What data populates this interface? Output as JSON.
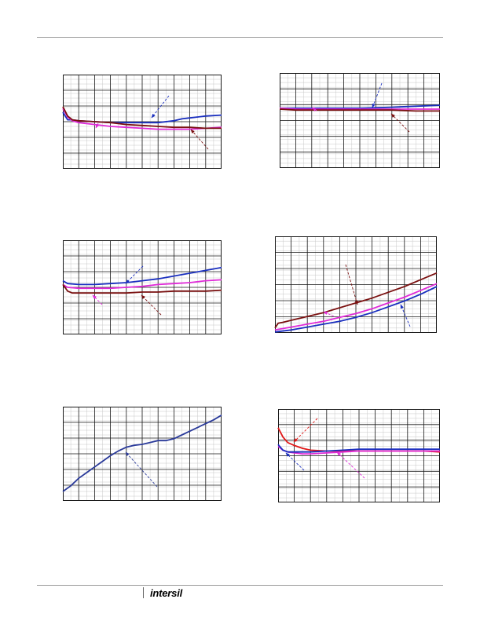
{
  "footer": {
    "logo_text": "intersil",
    "logo_name": "intersil-logo"
  },
  "colors": {
    "blue": "#1a2fbf",
    "magenta": "#e02ad8",
    "maroon": "#7a1010",
    "red": "#e01818",
    "navy": "#2a3a9a",
    "grid": "#1a1a1a",
    "minor_grid": "#c8c8c8"
  },
  "chart_data": [
    {
      "type": "line",
      "title": "",
      "xlabel": "",
      "ylabel": "",
      "xlim": [
        0,
        100
      ],
      "ylim": [
        0,
        100
      ],
      "grid": true,
      "series": [
        {
          "color": "blue",
          "x": [
            0,
            3,
            6,
            10,
            20,
            30,
            40,
            50,
            55,
            60,
            70,
            75,
            80,
            90,
            100
          ],
          "y": [
            60,
            52,
            52,
            51,
            50,
            49,
            49,
            49,
            49,
            49,
            51,
            53,
            54,
            56,
            57
          ]
        },
        {
          "color": "magenta",
          "x": [
            0,
            3,
            6,
            10,
            20,
            30,
            40,
            50,
            60,
            70,
            80,
            90,
            100
          ],
          "y": [
            64,
            55,
            51,
            49,
            47,
            45,
            44,
            43,
            42,
            42,
            42,
            43,
            44
          ]
        },
        {
          "color": "maroon",
          "x": [
            0,
            3,
            6,
            10,
            20,
            30,
            40,
            50,
            60,
            70,
            80,
            90,
            100
          ],
          "y": [
            66,
            56,
            52,
            51,
            50,
            49,
            47,
            46,
            45,
            44,
            44,
            43,
            43
          ]
        }
      ]
    },
    {
      "type": "line",
      "title": "",
      "xlabel": "",
      "ylabel": "",
      "xlim": [
        0,
        100
      ],
      "ylim": [
        0,
        100
      ],
      "grid": true,
      "series": [
        {
          "color": "blue",
          "x": [
            0,
            10,
            30,
            50,
            70,
            85,
            100
          ],
          "y": [
            63,
            63,
            63,
            63,
            64,
            65,
            66
          ]
        },
        {
          "color": "magenta",
          "x": [
            0,
            10,
            30,
            50,
            70,
            85,
            100
          ],
          "y": [
            63,
            62,
            62,
            62,
            62,
            62,
            62
          ]
        },
        {
          "color": "maroon",
          "x": [
            0,
            10,
            30,
            50,
            70,
            85,
            100
          ],
          "y": [
            62,
            61,
            61,
            61,
            61,
            60,
            60
          ]
        }
      ]
    },
    {
      "type": "line",
      "title": "",
      "xlabel": "",
      "ylabel": "",
      "xlim": [
        0,
        100
      ],
      "ylim": [
        0,
        100
      ],
      "grid": true,
      "series": [
        {
          "color": "blue",
          "x": [
            0,
            3,
            10,
            20,
            30,
            40,
            50,
            60,
            70,
            80,
            90,
            100
          ],
          "y": [
            57,
            54,
            53,
            53,
            54,
            55,
            57,
            59,
            62,
            65,
            68,
            71
          ]
        },
        {
          "color": "magenta",
          "x": [
            0,
            3,
            10,
            20,
            30,
            40,
            50,
            60,
            70,
            80,
            90,
            100
          ],
          "y": [
            53,
            50,
            49,
            49,
            49,
            50,
            51,
            53,
            54,
            55,
            57,
            58
          ]
        },
        {
          "color": "maroon",
          "x": [
            0,
            3,
            6,
            10,
            20,
            30,
            40,
            50,
            60,
            70,
            80,
            90,
            100
          ],
          "y": [
            53,
            46,
            44,
            44,
            44,
            44,
            44,
            45,
            45,
            46,
            46,
            46,
            47
          ]
        }
      ]
    },
    {
      "type": "line",
      "title": "",
      "xlabel": "",
      "ylabel": "",
      "xlim": [
        0,
        100
      ],
      "ylim": [
        0,
        100
      ],
      "grid": true,
      "series": [
        {
          "color": "maroon",
          "x": [
            0,
            2,
            5,
            10,
            20,
            30,
            40,
            50,
            60,
            70,
            80,
            90,
            100
          ],
          "y": [
            5,
            10,
            11,
            13,
            17,
            21,
            26,
            31,
            36,
            42,
            48,
            55,
            62
          ]
        },
        {
          "color": "magenta",
          "x": [
            0,
            10,
            20,
            30,
            40,
            50,
            60,
            70,
            80,
            90,
            100
          ],
          "y": [
            3,
            6,
            9,
            12,
            16,
            20,
            25,
            31,
            37,
            44,
            51
          ]
        },
        {
          "color": "blue",
          "x": [
            0,
            10,
            20,
            30,
            40,
            50,
            60,
            70,
            80,
            90,
            100
          ],
          "y": [
            1,
            3,
            6,
            9,
            12,
            16,
            21,
            27,
            33,
            40,
            48
          ]
        }
      ]
    },
    {
      "type": "line",
      "title": "",
      "xlabel": "",
      "ylabel": "",
      "xlim": [
        0,
        100
      ],
      "ylim": [
        0,
        100
      ],
      "grid": true,
      "series": [
        {
          "color": "navy",
          "x": [
            0,
            5,
            10,
            15,
            20,
            25,
            30,
            35,
            40,
            45,
            50,
            55,
            60,
            65,
            70,
            75,
            80,
            85,
            90,
            95,
            100
          ],
          "y": [
            10,
            16,
            24,
            30,
            36,
            42,
            48,
            53,
            57,
            59,
            60,
            62,
            64,
            64,
            66,
            70,
            74,
            78,
            82,
            86,
            91
          ]
        }
      ]
    },
    {
      "type": "line",
      "title": "",
      "xlabel": "",
      "ylabel": "",
      "xlim": [
        0,
        100
      ],
      "ylim": [
        0,
        100
      ],
      "grid": true,
      "series": [
        {
          "color": "red",
          "x": [
            0,
            3,
            6,
            10,
            15,
            20,
            30,
            40,
            50,
            60,
            70,
            80,
            90,
            100
          ],
          "y": [
            80,
            70,
            64,
            61,
            58,
            56,
            55,
            55,
            55,
            55,
            55,
            55,
            55,
            54
          ]
        },
        {
          "color": "magenta",
          "x": [
            0,
            3,
            6,
            10,
            15,
            20,
            30,
            40,
            50,
            60,
            70,
            80,
            90,
            100
          ],
          "y": [
            60,
            56,
            54,
            53,
            52,
            52,
            53,
            54,
            55,
            55,
            55,
            55,
            55,
            55
          ]
        },
        {
          "color": "blue",
          "x": [
            0,
            3,
            6,
            10,
            15,
            20,
            30,
            40,
            50,
            60,
            70,
            80,
            90,
            100
          ],
          "y": [
            62,
            56,
            54,
            54,
            54,
            54,
            55,
            56,
            57,
            57,
            57,
            57,
            57,
            57
          ]
        }
      ]
    }
  ]
}
